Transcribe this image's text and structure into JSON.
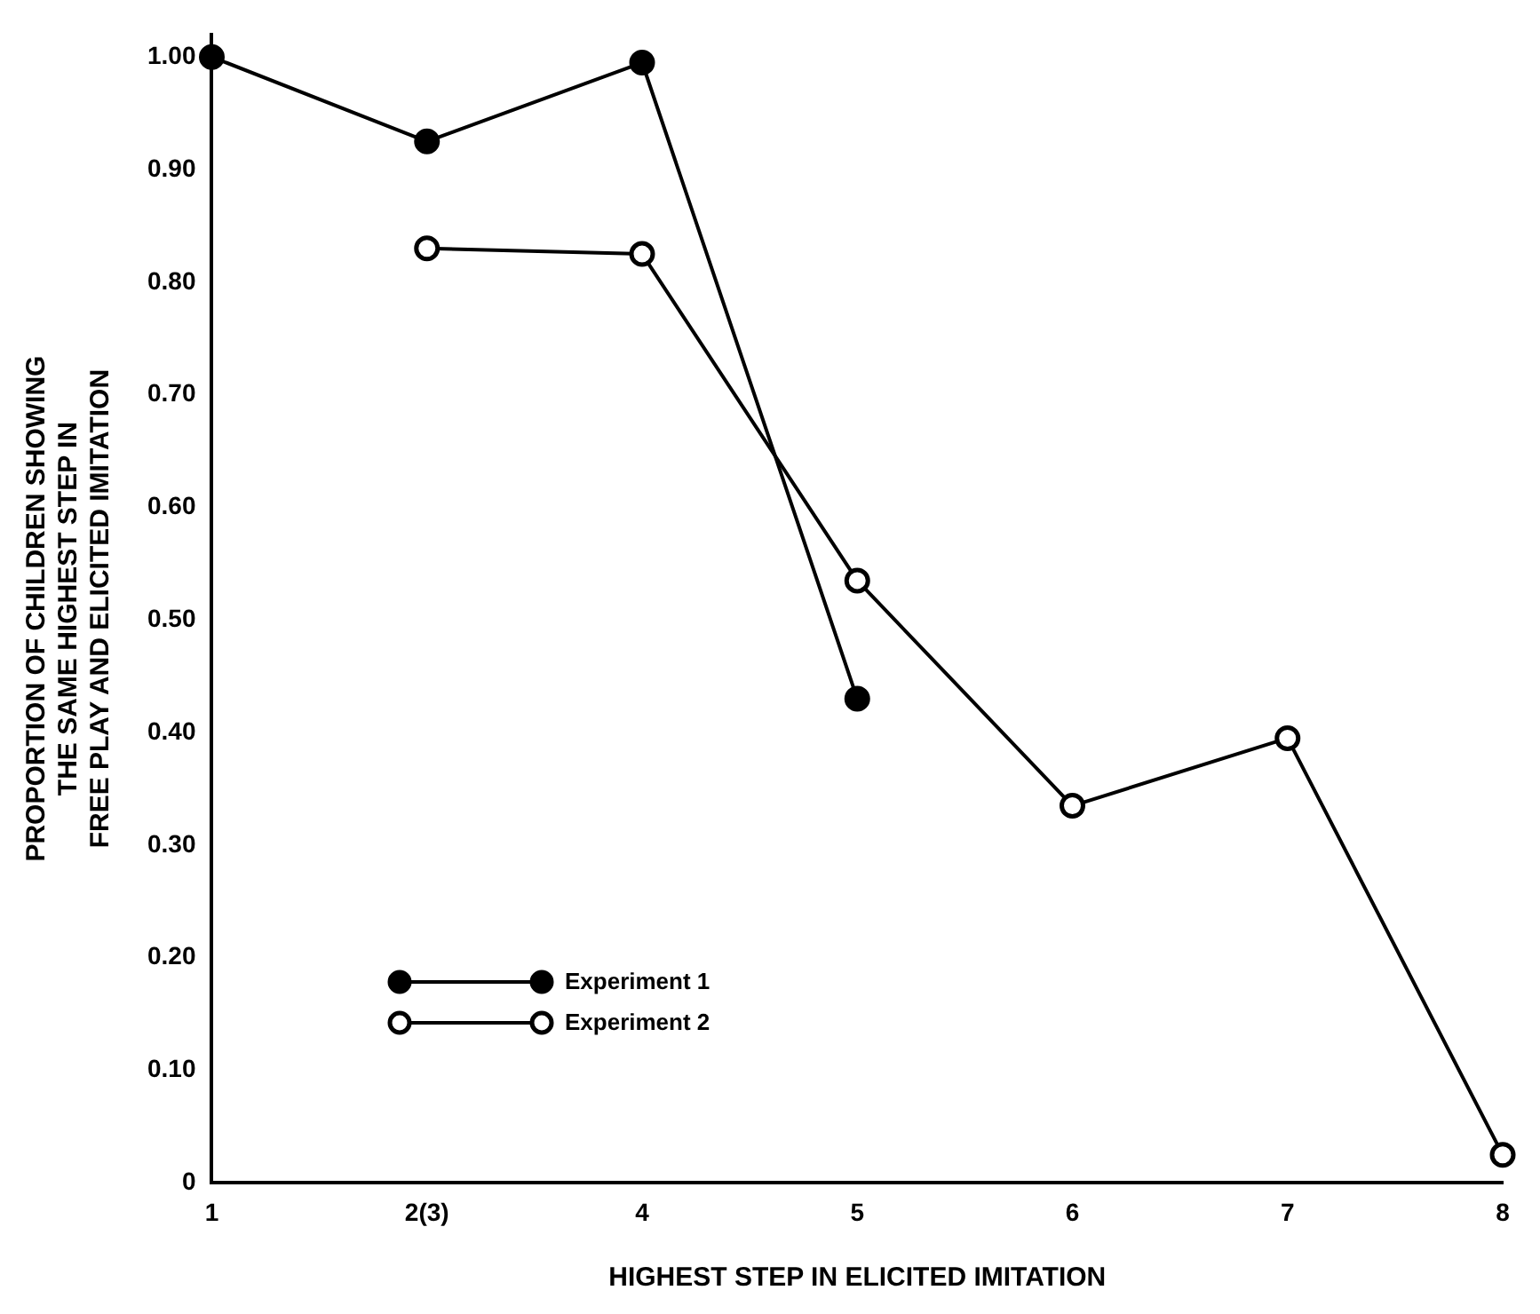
{
  "chart_data": {
    "type": "line",
    "xlabel": "HIGHEST STEP IN ELICITED IMITATION",
    "ylabel": "PROPORTION OF CHILDREN SHOWING\nTHE SAME HIGHEST STEP IN\nFREE PLAY AND ELICITED IMITATION",
    "categories": [
      "1",
      "2(3)",
      "4",
      "5",
      "6",
      "7",
      "8"
    ],
    "series": [
      {
        "name": "Experiment 1",
        "color": "#000000",
        "values": [
          1.0,
          0.925,
          0.995,
          0.43,
          null,
          null,
          null
        ]
      },
      {
        "name": "Experiment 2",
        "color": "#000000",
        "values": [
          null,
          0.83,
          0.825,
          0.535,
          0.335,
          0.395,
          0.025
        ]
      }
    ],
    "ylim": [
      0,
      1.02
    ],
    "yticks": [
      0,
      {
        "value": 0.1,
        "label": "0.10"
      },
      {
        "value": 0.2,
        "label": "0.20"
      },
      {
        "value": 0.3,
        "label": "0.30"
      },
      {
        "value": 0.4,
        "label": "0.40"
      },
      {
        "value": 0.5,
        "label": "0.50"
      },
      {
        "value": 0.6,
        "label": "0.60"
      },
      {
        "value": 0.7,
        "label": "0.70"
      },
      {
        "value": 0.8,
        "label": "0.80"
      },
      {
        "value": 0.9,
        "label": "0.90"
      },
      {
        "value": 1,
        "label": "1.00"
      }
    ],
    "grid": false,
    "legend": "bottom left",
    "marker": "circle",
    "line_style": "solid"
  }
}
